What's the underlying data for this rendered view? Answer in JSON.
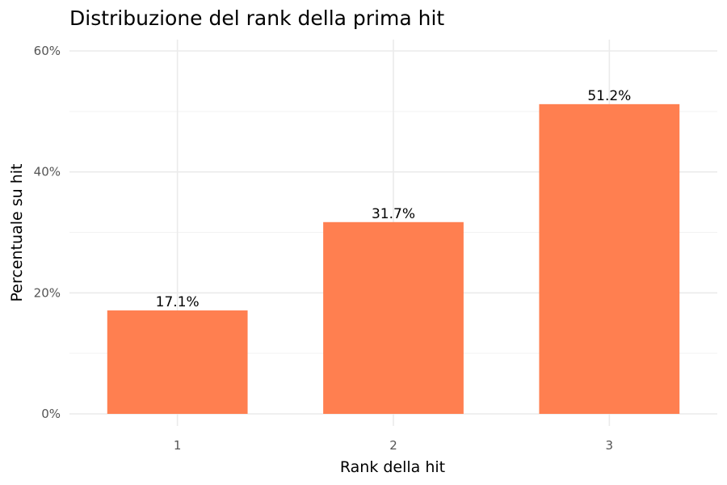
{
  "chart_data": {
    "type": "bar",
    "title": "Distribuzione del rank della prima hit",
    "xlabel": "Rank della hit",
    "ylabel": "Percentuale su hit",
    "categories": [
      "1",
      "2",
      "3"
    ],
    "values": [
      17.1,
      31.7,
      51.2
    ],
    "data_labels": [
      "17.1%",
      "31.7%",
      "51.2%"
    ],
    "ylim": [
      0,
      60
    ],
    "yticks": [
      0,
      20,
      40,
      60
    ],
    "ytick_labels": [
      "0%",
      "20%",
      "40%",
      "60%"
    ],
    "grid": true,
    "bar_color": "#FF7F50"
  }
}
